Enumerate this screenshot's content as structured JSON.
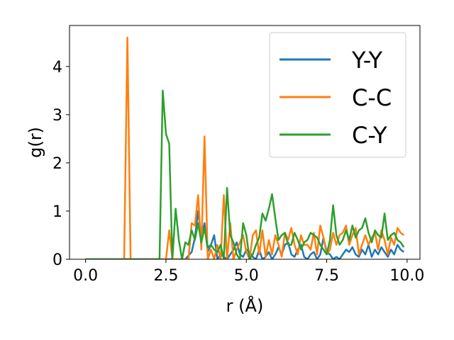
{
  "chart_data": {
    "type": "line",
    "xlabel": "r (Å)",
    "ylabel": "g(r)",
    "xlim": [
      -0.5,
      10.4
    ],
    "ylim": [
      0,
      4.85
    ],
    "xticks": [
      0.0,
      2.5,
      5.0,
      7.5,
      10.0
    ],
    "xtick_labels": [
      "0.0",
      "2.5",
      "5.0",
      "7.5",
      "10.0"
    ],
    "yticks": [
      0,
      1,
      2,
      3,
      4
    ],
    "ytick_labels": [
      "0",
      "1",
      "2",
      "3",
      "4"
    ],
    "grid": false,
    "legend_position": "top-right",
    "series": [
      {
        "name": "Y-Y",
        "color": "#1f77b4",
        "x": [
          0.0,
          3.1,
          3.3,
          3.4,
          3.5,
          3.6,
          3.7,
          3.8,
          3.9,
          4.0,
          4.1,
          4.2,
          4.4,
          4.6,
          4.7,
          4.8,
          4.9,
          5.0,
          5.1,
          5.2,
          5.3,
          5.4,
          5.5,
          5.6,
          5.7,
          5.8,
          5.9,
          6.0,
          6.1,
          6.2,
          6.3,
          6.4,
          6.5,
          6.6,
          6.7,
          6.8,
          6.9,
          7.0,
          7.1,
          7.2,
          7.3,
          7.4,
          7.5,
          7.6,
          7.7,
          7.8,
          7.9,
          8.0,
          8.1,
          8.2,
          8.3,
          8.4,
          8.5,
          8.6,
          8.7,
          8.8,
          8.9,
          9.0,
          9.1,
          9.2,
          9.3,
          9.4,
          9.5,
          9.6,
          9.7,
          9.8,
          9.9
        ],
        "y": [
          0.0,
          0.0,
          0.15,
          0.45,
          1.0,
          0.45,
          0.75,
          0.15,
          0.3,
          0.5,
          0.0,
          0.1,
          0.0,
          0.2,
          0.35,
          0.1,
          0.05,
          0.2,
          0.15,
          0.05,
          0.0,
          0.2,
          0.0,
          0.05,
          0.15,
          0.0,
          0.1,
          0.25,
          0.1,
          0.3,
          0.35,
          0.1,
          0.05,
          0.2,
          0.3,
          0.05,
          0.0,
          0.1,
          0.15,
          0.0,
          0.1,
          0.45,
          0.15,
          0.1,
          0.0,
          0.05,
          0.0,
          0.1,
          0.2,
          0.15,
          0.25,
          0.1,
          0.05,
          0.2,
          0.1,
          0.3,
          0.05,
          0.2,
          0.1,
          0.25,
          0.15,
          0.05,
          0.2,
          0.1,
          0.3,
          0.2,
          0.15
        ]
      },
      {
        "name": "C-C",
        "color": "#ff7f0e",
        "x": [
          0.0,
          1.2,
          1.3,
          1.4,
          1.5,
          2.5,
          2.6,
          2.7,
          2.8,
          3.0,
          3.2,
          3.3,
          3.4,
          3.5,
          3.6,
          3.7,
          3.8,
          3.9,
          4.0,
          4.1,
          4.2,
          4.3,
          4.4,
          4.5,
          4.6,
          4.7,
          4.8,
          4.9,
          5.0,
          5.1,
          5.2,
          5.3,
          5.4,
          5.5,
          5.6,
          5.7,
          5.8,
          5.9,
          6.0,
          6.1,
          6.2,
          6.3,
          6.4,
          6.5,
          6.6,
          6.7,
          6.8,
          6.9,
          7.0,
          7.1,
          7.2,
          7.3,
          7.4,
          7.5,
          7.6,
          7.7,
          7.8,
          7.9,
          8.0,
          8.1,
          8.2,
          8.3,
          8.4,
          8.5,
          8.6,
          8.7,
          8.8,
          8.9,
          9.0,
          9.1,
          9.2,
          9.3,
          9.4,
          9.5,
          9.6,
          9.7,
          9.8,
          9.9
        ],
        "y": [
          0.0,
          0.0,
          4.6,
          0.0,
          0.0,
          0.0,
          0.6,
          0.0,
          0.0,
          0.0,
          0.0,
          0.75,
          0.7,
          1.33,
          0.2,
          2.55,
          0.0,
          0.2,
          0.0,
          0.3,
          0.0,
          1.33,
          0.0,
          0.75,
          0.0,
          0.2,
          0.35,
          0.5,
          0.15,
          0.0,
          0.5,
          0.6,
          0.1,
          0.6,
          0.05,
          0.4,
          0.1,
          0.5,
          0.3,
          0.05,
          0.55,
          0.4,
          0.65,
          0.3,
          0.1,
          0.5,
          0.3,
          0.3,
          0.2,
          0.55,
          0.1,
          0.7,
          0.45,
          0.1,
          0.2,
          0.55,
          0.3,
          0.5,
          0.55,
          0.7,
          0.3,
          0.5,
          0.65,
          0.1,
          0.3,
          0.5,
          0.3,
          0.45,
          0.55,
          0.2,
          0.6,
          0.4,
          0.1,
          0.45,
          0.3,
          0.65,
          0.55,
          0.5
        ]
      },
      {
        "name": "C-Y",
        "color": "#2ca02c",
        "x": [
          0.0,
          2.3,
          2.4,
          2.5,
          2.6,
          2.7,
          2.8,
          2.9,
          3.0,
          3.1,
          3.2,
          3.3,
          3.4,
          3.5,
          3.6,
          3.7,
          3.8,
          3.9,
          4.0,
          4.1,
          4.2,
          4.3,
          4.4,
          4.5,
          4.6,
          4.7,
          4.8,
          4.9,
          5.0,
          5.1,
          5.2,
          5.3,
          5.4,
          5.5,
          5.6,
          5.7,
          5.8,
          5.9,
          6.0,
          6.1,
          6.2,
          6.3,
          6.4,
          6.5,
          6.6,
          6.7,
          6.8,
          6.9,
          7.0,
          7.1,
          7.2,
          7.3,
          7.4,
          7.5,
          7.6,
          7.7,
          7.8,
          7.9,
          8.0,
          8.1,
          8.2,
          8.3,
          8.4,
          8.5,
          8.6,
          8.7,
          8.8,
          8.9,
          9.0,
          9.1,
          9.2,
          9.3,
          9.4,
          9.5,
          9.6,
          9.7,
          9.8,
          9.9
        ],
        "y": [
          0.0,
          0.0,
          3.5,
          2.6,
          2.4,
          0.0,
          1.05,
          0.4,
          0.0,
          0.35,
          0.3,
          0.6,
          0.4,
          0.75,
          0.35,
          0.65,
          0.25,
          0.3,
          0.2,
          0.15,
          0.3,
          0.0,
          1.48,
          0.5,
          0.35,
          0.1,
          0.0,
          0.75,
          0.5,
          0.0,
          0.1,
          0.3,
          0.45,
          0.95,
          0.8,
          1.05,
          1.35,
          0.85,
          0.4,
          0.5,
          0.55,
          0.3,
          0.3,
          0.55,
          0.4,
          0.2,
          0.35,
          0.4,
          0.55,
          0.5,
          0.45,
          0.3,
          0.2,
          0.1,
          0.4,
          1.12,
          0.5,
          0.3,
          0.4,
          0.6,
          0.4,
          0.7,
          0.45,
          0.6,
          0.65,
          0.85,
          0.55,
          0.35,
          0.6,
          0.5,
          0.45,
          0.95,
          0.4,
          0.5,
          0.55,
          0.4,
          0.35,
          0.25
        ]
      }
    ]
  }
}
